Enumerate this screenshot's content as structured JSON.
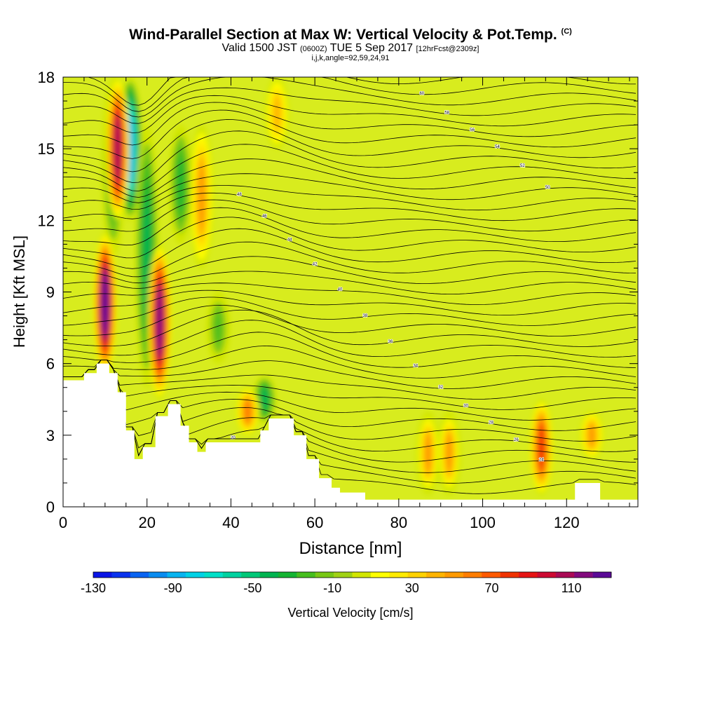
{
  "header": {
    "title": "Wind-Parallel Section at Max W: Vertical Velocity & Pot.Temp.",
    "copyright": "(C)",
    "valid_prefix": "Valid 1500 JST",
    "valid_utc": "(0600Z)",
    "valid_date": "TUE 5 Sep 2017",
    "forecast": "[12hrFcst@2309z]",
    "indices": "i,j,k,angle=92,59,24,91"
  },
  "chart_data": {
    "type": "heatmap",
    "xlabel": "Distance [nm]",
    "ylabel": "Height [Kft MSL]",
    "xlim": [
      0,
      137
    ],
    "ylim": [
      0,
      18
    ],
    "x_ticks": [
      "0",
      "20",
      "40",
      "60",
      "80",
      "100",
      "120"
    ],
    "y_ticks": [
      "0",
      "3",
      "6",
      "9",
      "12",
      "15",
      "18"
    ],
    "x_tick_values": [
      0,
      20,
      40,
      60,
      80,
      100,
      120
    ],
    "y_tick_values": [
      0,
      3,
      6,
      9,
      12,
      15,
      18
    ],
    "colorbar": {
      "label": "Vertical Velocity [cm/s]",
      "range": [
        -130,
        130
      ],
      "tick_labels": [
        "-130",
        "-90",
        "-50",
        "-10",
        "30",
        "70",
        "110"
      ],
      "tick_values": [
        -130,
        -90,
        -50,
        -10,
        30,
        70,
        110
      ],
      "colors": [
        "#0a14e6",
        "#0a32ee",
        "#0a64f2",
        "#0a8cf0",
        "#08b4f0",
        "#00d2e6",
        "#00e0c8",
        "#00d2a0",
        "#00c878",
        "#00b450",
        "#14b432",
        "#46be1e",
        "#78c814",
        "#a0d214",
        "#d2e600",
        "#ffff00",
        "#ffeb00",
        "#ffd200",
        "#ffb400",
        "#ff9a00",
        "#ff7d00",
        "#ff5a00",
        "#f03200",
        "#e61414",
        "#cd0a32",
        "#aa0a55",
        "#820a7d",
        "#5a0a96"
      ]
    },
    "updraft_cores": [
      {
        "x": 10,
        "height_range": [
          5.5,
          11.5
        ],
        "peak_w": 130
      },
      {
        "x": 13,
        "height_range": [
          12,
          18
        ],
        "peak_w": 110
      },
      {
        "x": 23,
        "height_range": [
          4.5,
          11
        ],
        "peak_w": 120
      },
      {
        "x": 33,
        "height_range": [
          10,
          16
        ],
        "peak_w": 50
      },
      {
        "x": 51,
        "height_range": [
          15,
          18
        ],
        "peak_w": 40
      },
      {
        "x": 44,
        "height_range": [
          3,
          5
        ],
        "peak_w": 60
      },
      {
        "x": 87,
        "height_range": [
          0.5,
          4
        ],
        "peak_w": 55
      },
      {
        "x": 92,
        "height_range": [
          0.5,
          4
        ],
        "peak_w": 55
      },
      {
        "x": 114,
        "height_range": [
          0.5,
          4.5
        ],
        "peak_w": 80
      },
      {
        "x": 126,
        "height_range": [
          2,
          4
        ],
        "peak_w": 50
      }
    ],
    "downdraft_cores": [
      {
        "x": 12,
        "height_range": [
          10.5,
          18
        ],
        "peak_w": -30
      },
      {
        "x": 16,
        "height_range": [
          12,
          18
        ],
        "peak_w": -90
      },
      {
        "x": 20,
        "height_range": [
          5,
          16
        ],
        "peak_w": -40
      },
      {
        "x": 28,
        "height_range": [
          11,
          16
        ],
        "peak_w": -30
      },
      {
        "x": 37,
        "height_range": [
          6,
          9
        ],
        "peak_w": -20
      },
      {
        "x": 48,
        "height_range": [
          3.5,
          5.5
        ],
        "peak_w": -40
      }
    ],
    "terrain_profile": {
      "x": [
        0,
        5,
        8,
        11,
        13,
        15,
        17,
        19,
        22,
        25,
        28,
        30,
        32,
        34,
        36,
        40,
        44,
        47,
        49,
        52,
        55,
        58,
        61,
        64,
        66,
        70,
        72,
        76,
        80,
        90,
        100,
        110,
        118,
        120,
        122,
        125,
        128,
        137
      ],
      "height": [
        5.3,
        5.6,
        6.0,
        5.6,
        4.8,
        3.2,
        2.0,
        2.5,
        3.8,
        4.3,
        3.4,
        2.7,
        2.3,
        2.7,
        2.7,
        2.7,
        2.7,
        3.2,
        3.7,
        3.7,
        3.0,
        2.0,
        1.2,
        0.8,
        0.6,
        0.6,
        0.3,
        0.3,
        0.3,
        0.3,
        0.3,
        0.3,
        0.3,
        0.3,
        1.0,
        1.0,
        0.3,
        0.3
      ]
    },
    "isentropes": {
      "levels_count": 40,
      "labels": [
        "20",
        "24",
        "26",
        "28",
        "30",
        "32",
        "34",
        "36",
        "38",
        "40",
        "42",
        "44",
        "46",
        "48",
        "50",
        "52",
        "54",
        "56",
        "58",
        "60",
        "62",
        "64",
        "66"
      ]
    }
  }
}
